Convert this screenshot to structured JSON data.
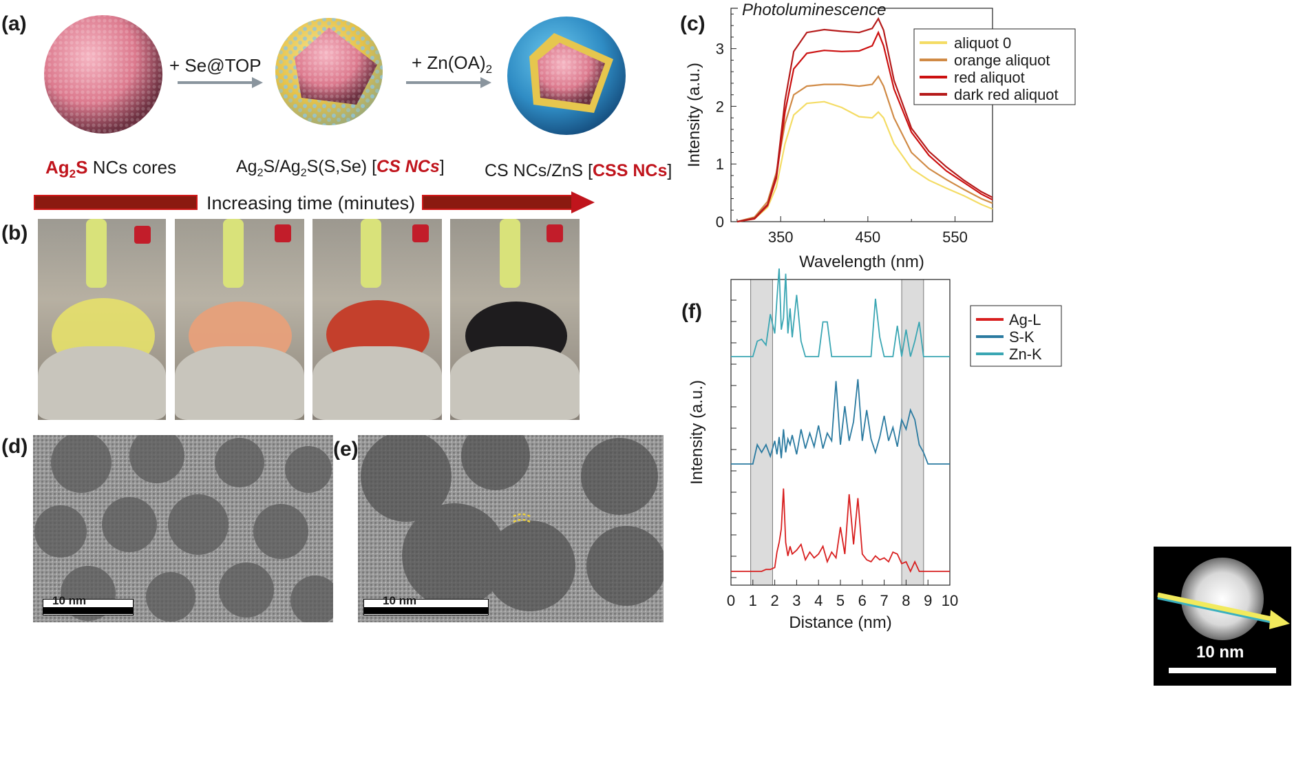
{
  "panels": {
    "a": "(a)",
    "b": "(b)",
    "c": "(c)",
    "d": "(d)",
    "e": "(e)",
    "f": "(f)"
  },
  "scheme": {
    "step1": "+ Se@TOP",
    "step2_main": "+ Zn(OA)",
    "step2_sub": "2",
    "core_label": {
      "bold1": "Ag",
      "bold_sub": "2",
      "bold2": "S",
      "rest": " NCs cores"
    },
    "cs_label": {
      "pre": "Ag",
      "s1": "2",
      "mid": "S/Ag",
      "s2": "2",
      "post": "S(S,Se) [",
      "bold": "CS NCs",
      "end": "]"
    },
    "css_label": {
      "pre": "CS NCs/ZnS [",
      "bold": "CSS NCs",
      "end": "]"
    },
    "time_arrow": "Increasing time (minutes)",
    "colors": {
      "accent_red": "#c0141c",
      "arrow_brown": "#8b1a10",
      "arrow_gray": "#8a959e"
    }
  },
  "tem": {
    "d_scale": "10 nm",
    "e_scale": "10 nm",
    "f_scale": "10 nm"
  },
  "chart_data": [
    {
      "type": "line",
      "title": "Photoluminescence",
      "xlabel": "Wavelength  (nm)",
      "ylabel": "Intensity  (a.u.)",
      "xlim": [
        293,
        593
      ],
      "ylim": [
        0,
        3.7
      ],
      "xticks": [
        "350",
        "450",
        "550"
      ],
      "yticks": [
        "0",
        "1",
        "2",
        "3"
      ],
      "legend_position": "top-right",
      "x": [
        300,
        320,
        335,
        345,
        355,
        365,
        380,
        400,
        420,
        440,
        455,
        462,
        468,
        480,
        500,
        520,
        540,
        560,
        580,
        593
      ],
      "series": [
        {
          "name": "aliquot 0",
          "color": "#f4dc64",
          "values": [
            0,
            0.05,
            0.25,
            0.6,
            1.35,
            1.85,
            2.05,
            2.08,
            1.98,
            1.82,
            1.8,
            1.9,
            1.8,
            1.35,
            0.92,
            0.72,
            0.58,
            0.45,
            0.3,
            0.22
          ]
        },
        {
          "name": "orange aliquot",
          "color": "#d08a45",
          "values": [
            0,
            0.08,
            0.35,
            0.85,
            1.7,
            2.2,
            2.35,
            2.38,
            2.38,
            2.35,
            2.38,
            2.52,
            2.35,
            1.8,
            1.2,
            0.92,
            0.73,
            0.56,
            0.4,
            0.32
          ]
        },
        {
          "name": "red aliquot",
          "color": "#cc1010",
          "values": [
            0,
            0.05,
            0.28,
            0.75,
            1.9,
            2.65,
            2.92,
            2.97,
            2.95,
            2.96,
            3.05,
            3.28,
            3.05,
            2.3,
            1.55,
            1.15,
            0.88,
            0.68,
            0.48,
            0.38
          ]
        },
        {
          "name": "dark red aliquot",
          "color": "#b51a1a",
          "values": [
            0,
            0.06,
            0.3,
            0.8,
            2.1,
            2.95,
            3.28,
            3.33,
            3.3,
            3.28,
            3.35,
            3.52,
            3.32,
            2.45,
            1.62,
            1.22,
            0.95,
            0.72,
            0.52,
            0.42
          ]
        }
      ]
    },
    {
      "type": "line",
      "title": "",
      "xlabel": "Distance  (nm)",
      "ylabel": "Intensity  (a.u.)",
      "xlim": [
        0,
        10
      ],
      "xticks": [
        "0",
        "1",
        "2",
        "3",
        "4",
        "5",
        "6",
        "7",
        "8",
        "9",
        "10"
      ],
      "legend_position": "top-right",
      "shaded_regions": [
        [
          0.9,
          1.9
        ],
        [
          7.8,
          8.8
        ]
      ],
      "x": [
        0,
        0.5,
        1.0,
        1.2,
        1.4,
        1.6,
        1.8,
        2.0,
        2.1,
        2.2,
        2.3,
        2.4,
        2.5,
        2.6,
        2.7,
        2.8,
        3.0,
        3.2,
        3.4,
        3.6,
        3.8,
        4.0,
        4.2,
        4.4,
        4.6,
        4.8,
        5.0,
        5.2,
        5.4,
        5.6,
        5.8,
        6.0,
        6.2,
        6.4,
        6.6,
        6.8,
        7.0,
        7.2,
        7.4,
        7.6,
        7.8,
        8.0,
        8.2,
        8.4,
        8.6,
        8.8,
        9.0,
        9.5,
        10
      ],
      "series": [
        {
          "name": "Ag-L",
          "color": "#d81e1e",
          "values": [
            0,
            0,
            0,
            0,
            0,
            0.1,
            0.1,
            0.2,
            1.0,
            1.5,
            2.2,
            4.3,
            1.5,
            0.8,
            1.3,
            0.9,
            1.1,
            1.4,
            0.6,
            1.0,
            0.7,
            0.9,
            1.3,
            0.5,
            1.0,
            0.7,
            2.3,
            0.9,
            4.0,
            1.4,
            3.8,
            0.9,
            0.6,
            0.5,
            0.8,
            0.6,
            0.7,
            0.5,
            1.0,
            0.9,
            0.4,
            0.5,
            0.0,
            0.5,
            0,
            0,
            0,
            0,
            0
          ]
        },
        {
          "name": "S-K",
          "color": "#2a7aa0",
          "values": [
            0,
            0,
            0,
            1.0,
            0.6,
            1.0,
            0.4,
            1.2,
            0.5,
            1.4,
            0.3,
            1.8,
            0.6,
            1.3,
            1.0,
            1.5,
            0.5,
            1.8,
            0.8,
            1.6,
            0.9,
            2.0,
            0.8,
            1.6,
            1.2,
            4.3,
            1.0,
            3.0,
            1.2,
            2.2,
            4.4,
            1.2,
            2.8,
            1.3,
            0.6,
            1.4,
            2.5,
            1.2,
            1.9,
            0.9,
            2.3,
            1.8,
            2.8,
            2.3,
            1.0,
            0.6,
            0,
            0,
            0
          ]
        },
        {
          "name": "Zn-K",
          "color": "#3aa6b3",
          "values": [
            0,
            0,
            0,
            0.8,
            0.9,
            0.6,
            2.2,
            1.2,
            3.0,
            4.6,
            1.4,
            2.0,
            4.3,
            1.2,
            2.5,
            1.0,
            3.2,
            0.8,
            0,
            0,
            0,
            0,
            1.8,
            1.8,
            0,
            0,
            0,
            0,
            0,
            0,
            0,
            0,
            0,
            0,
            3.0,
            1.0,
            0,
            0,
            0,
            1.6,
            0,
            1.4,
            0,
            0.8,
            1.8,
            0,
            0,
            0,
            0
          ]
        }
      ]
    }
  ]
}
